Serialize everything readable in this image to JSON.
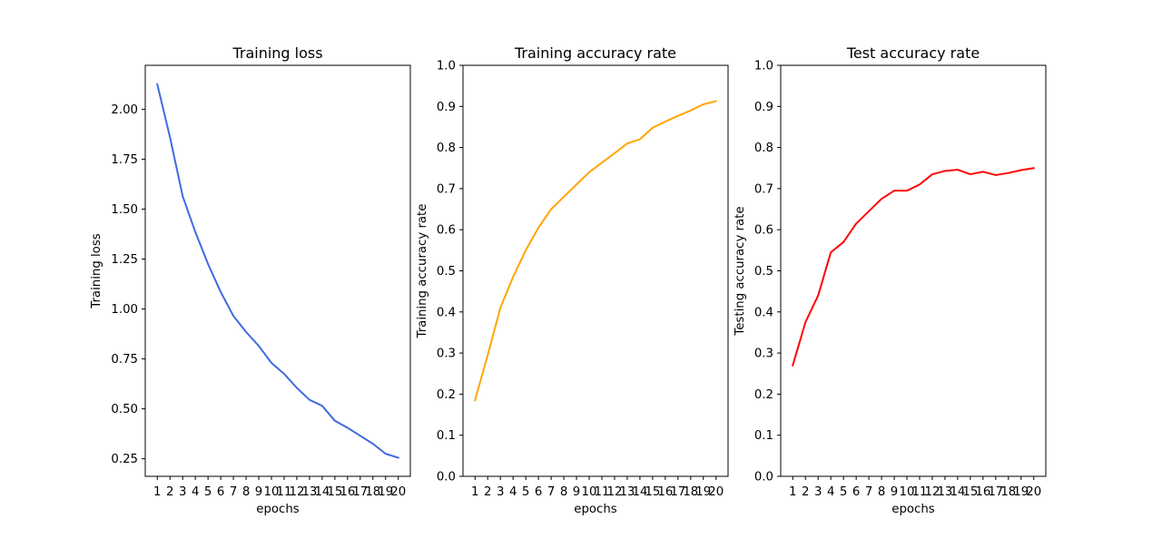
{
  "chart_data": [
    {
      "type": "line",
      "title": "Training loss",
      "xlabel": "epochs",
      "ylabel": "Training loss",
      "x": [
        1,
        2,
        3,
        4,
        5,
        6,
        7,
        8,
        9,
        10,
        11,
        12,
        13,
        14,
        15,
        16,
        17,
        18,
        19,
        20
      ],
      "series": [
        {
          "color": "#4169e1",
          "values": [
            2.125,
            1.86,
            1.565,
            1.385,
            1.225,
            1.085,
            0.965,
            0.885,
            0.815,
            0.73,
            0.675,
            0.605,
            0.545,
            0.515,
            0.44,
            0.405,
            0.365,
            0.325,
            0.275,
            0.255
          ]
        }
      ],
      "ylim": [
        0.162,
        2.22
      ],
      "yticks": [
        0.25,
        0.5,
        0.75,
        1.0,
        1.25,
        1.5,
        1.75,
        2.0
      ],
      "ytick_labels": [
        "0.25",
        "0.50",
        "0.75",
        "1.00",
        "1.25",
        "1.50",
        "1.75",
        "2.00"
      ],
      "xtick_labels": [
        "1",
        "2",
        "3",
        "4",
        "5",
        "6",
        "7",
        "8",
        "9",
        "10",
        "11",
        "12",
        "13",
        "14",
        "15",
        "16",
        "17",
        "18",
        "19",
        "20"
      ],
      "grid": false
    },
    {
      "type": "line",
      "title": "Training accuracy rate",
      "xlabel": "epochs",
      "ylabel": "Training accuracy rate",
      "x": [
        1,
        2,
        3,
        4,
        5,
        6,
        7,
        8,
        9,
        10,
        11,
        12,
        13,
        14,
        15,
        16,
        17,
        18,
        19,
        20
      ],
      "series": [
        {
          "color": "#ffa500",
          "values": [
            0.185,
            0.295,
            0.41,
            0.485,
            0.55,
            0.605,
            0.65,
            0.68,
            0.71,
            0.74,
            0.763,
            0.786,
            0.81,
            0.82,
            0.848,
            0.863,
            0.877,
            0.89,
            0.905,
            0.913
          ]
        }
      ],
      "ylim": [
        0.0,
        1.0
      ],
      "yticks": [
        0.0,
        0.1,
        0.2,
        0.3,
        0.4,
        0.5,
        0.6,
        0.7,
        0.8,
        0.9,
        1.0
      ],
      "ytick_labels": [
        "0.0",
        "0.1",
        "0.2",
        "0.3",
        "0.4",
        "0.5",
        "0.6",
        "0.7",
        "0.8",
        "0.9",
        "1.0"
      ],
      "xtick_labels": [
        "1",
        "2",
        "3",
        "4",
        "5",
        "6",
        "7",
        "8",
        "9",
        "10",
        "11",
        "12",
        "13",
        "14",
        "15",
        "16",
        "17",
        "18",
        "19",
        "20"
      ],
      "grid": false
    },
    {
      "type": "line",
      "title": "Test accuracy rate",
      "xlabel": "epochs",
      "ylabel": "Testing accuracy rate",
      "x": [
        1,
        2,
        3,
        4,
        5,
        6,
        7,
        8,
        9,
        10,
        11,
        12,
        13,
        14,
        15,
        16,
        17,
        18,
        19,
        20
      ],
      "series": [
        {
          "color": "#ff0000",
          "values": [
            0.27,
            0.375,
            0.44,
            0.545,
            0.57,
            0.615,
            0.645,
            0.675,
            0.695,
            0.695,
            0.71,
            0.735,
            0.743,
            0.746,
            0.735,
            0.741,
            0.733,
            0.738,
            0.745,
            0.75
          ]
        }
      ],
      "ylim": [
        0.0,
        1.0
      ],
      "yticks": [
        0.0,
        0.1,
        0.2,
        0.3,
        0.4,
        0.5,
        0.6,
        0.7,
        0.8,
        0.9,
        1.0
      ],
      "ytick_labels": [
        "0.0",
        "0.1",
        "0.2",
        "0.3",
        "0.4",
        "0.5",
        "0.6",
        "0.7",
        "0.8",
        "0.9",
        "1.0"
      ],
      "xtick_labels": [
        "1",
        "2",
        "3",
        "4",
        "5",
        "6",
        "7",
        "8",
        "9",
        "10",
        "11",
        "12",
        "13",
        "14",
        "15",
        "16",
        "17",
        "18",
        "19",
        "20"
      ],
      "grid": false
    }
  ]
}
